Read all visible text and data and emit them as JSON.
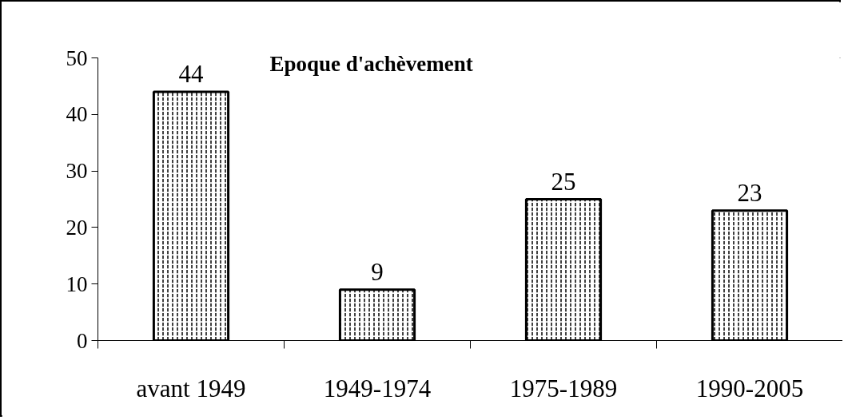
{
  "chart_data": {
    "type": "bar",
    "title": "Epoque d'achèvement",
    "categories": [
      "avant 1949",
      "1949-1974",
      "1975-1989",
      "1990-2005"
    ],
    "values": [
      44,
      9,
      25,
      23
    ],
    "color": "#ffffff",
    "data_labels": true,
    "ylim": [
      0,
      50
    ],
    "yticks": [
      0,
      10,
      20,
      30,
      40,
      50
    ],
    "grid": false
  }
}
